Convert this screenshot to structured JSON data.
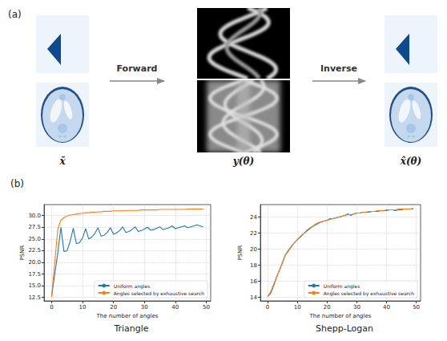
{
  "figure": {
    "panel_a": {
      "letter": "(a)",
      "forward": "Forward",
      "inverse": "Inverse",
      "input_label": "x̄",
      "measurement_label": "y(θ)",
      "output_label": "x̂(θ)"
    },
    "panel_b": {
      "letter": "(b)"
    }
  },
  "chart_data": [
    {
      "type": "line",
      "title": "Triangle",
      "x_label": "The number of angles",
      "y_label": "PSNR",
      "x": [
        0,
        1,
        2,
        3,
        4,
        5,
        6,
        7,
        8,
        9,
        10,
        11,
        12,
        13,
        14,
        15,
        16,
        17,
        18,
        19,
        20,
        21,
        22,
        23,
        24,
        25,
        26,
        27,
        28,
        29,
        30,
        31,
        32,
        33,
        34,
        35,
        36,
        37,
        38,
        39,
        40,
        41,
        42,
        43,
        44,
        45,
        46,
        47,
        48,
        49
      ],
      "series": [
        {
          "name": "Uniform angles",
          "color": "#1f77b4",
          "values": [
            12.7,
            17.5,
            22.0,
            27.5,
            22.3,
            22.5,
            24.5,
            27.3,
            24.0,
            24.2,
            25.2,
            27.2,
            25.0,
            25.4,
            26.2,
            27.4,
            25.6,
            25.8,
            26.4,
            27.4,
            26.0,
            26.3,
            26.8,
            27.6,
            26.4,
            26.6,
            27.0,
            27.6,
            26.6,
            26.8,
            27.1,
            27.5,
            26.9,
            27.0,
            27.3,
            27.6,
            27.0,
            27.2,
            27.4,
            27.8,
            27.2,
            27.4,
            27.6,
            27.8,
            27.4,
            27.6,
            27.8,
            28.0,
            27.8,
            27.6
          ]
        },
        {
          "name": "Angles selected by exhaustive search",
          "color": "#ff7f0e",
          "values": [
            12.7,
            20.0,
            27.2,
            29.0,
            29.6,
            29.9,
            30.1,
            30.2,
            30.3,
            30.4,
            30.5,
            30.6,
            30.6,
            30.7,
            30.7,
            30.8,
            30.8,
            30.9,
            30.9,
            30.9,
            31.0,
            31.0,
            31.0,
            31.0,
            31.1,
            31.1,
            31.1,
            31.1,
            31.1,
            31.2,
            31.2,
            31.2,
            31.2,
            31.2,
            31.2,
            31.3,
            31.3,
            31.3,
            31.3,
            31.3,
            31.3,
            31.3,
            31.3,
            31.3,
            31.4,
            31.4,
            31.4,
            31.4,
            31.4,
            31.4
          ]
        }
      ],
      "xlim": [
        -2.45,
        51.45
      ],
      "xticks": [
        0,
        10,
        20,
        30,
        40,
        50
      ],
      "ylim": [
        11.77,
        32.34
      ],
      "yticks": [
        12.5,
        {
          "value": 15,
          "label": "15.0"
        },
        17.5,
        {
          "value": 20,
          "label": "20.0"
        },
        22.5,
        {
          "value": 25,
          "label": "25.0"
        },
        27.5,
        {
          "value": 30,
          "label": "30.0"
        }
      ],
      "grid": true,
      "legend": "lower right"
    },
    {
      "type": "line",
      "title": "Shepp-Logan",
      "x_label": "The number of angles",
      "y_label": "PSNR",
      "x": [
        0,
        1,
        2,
        3,
        4,
        5,
        6,
        7,
        8,
        9,
        10,
        11,
        12,
        13,
        14,
        15,
        16,
        17,
        18,
        19,
        20,
        21,
        22,
        23,
        24,
        25,
        26,
        27,
        28,
        29,
        30,
        31,
        32,
        33,
        34,
        35,
        36,
        37,
        38,
        39,
        40,
        41,
        42,
        43,
        44,
        45,
        46,
        47,
        48,
        49
      ],
      "series": [
        {
          "name": "Uniform angles",
          "color": "#1f77b4",
          "values": [
            14.1,
            14.5,
            15.4,
            16.5,
            17.4,
            18.3,
            19.3,
            19.8,
            20.3,
            20.8,
            21.2,
            21.5,
            21.9,
            22.2,
            22.5,
            22.8,
            23.0,
            23.2,
            23.4,
            23.5,
            23.6,
            23.8,
            23.8,
            23.9,
            24.0,
            24.1,
            24.2,
            24.4,
            24.2,
            24.4,
            24.5,
            24.5,
            24.6,
            24.6,
            24.6,
            24.7,
            24.7,
            24.7,
            24.8,
            24.8,
            24.8,
            24.9,
            24.9,
            24.8,
            24.9,
            24.9,
            25.0,
            25.0,
            25.0,
            25.0
          ]
        },
        {
          "name": "Angles selected by exhaustive search",
          "color": "#ff7f0e",
          "values": [
            14.1,
            14.7,
            15.6,
            16.5,
            17.4,
            18.4,
            19.3,
            19.9,
            20.4,
            20.8,
            21.2,
            21.6,
            21.9,
            22.3,
            22.6,
            22.8,
            23.1,
            23.3,
            23.4,
            23.5,
            23.6,
            23.7,
            23.8,
            23.9,
            24.0,
            24.1,
            24.2,
            24.3,
            24.3,
            24.4,
            24.5,
            24.5,
            24.6,
            24.6,
            24.7,
            24.7,
            24.7,
            24.8,
            24.8,
            24.8,
            24.9,
            24.9,
            24.9,
            24.9,
            25.0,
            25.0,
            25.0,
            25.0,
            25.0,
            25.1
          ]
        }
      ],
      "xlim": [
        -2.45,
        51.45
      ],
      "xticks": [
        0,
        10,
        20,
        30,
        40,
        50
      ],
      "ylim": [
        13.56,
        25.55
      ],
      "yticks": [
        14,
        16,
        18,
        20,
        22,
        24
      ],
      "grid": true,
      "legend": "lower right"
    }
  ]
}
